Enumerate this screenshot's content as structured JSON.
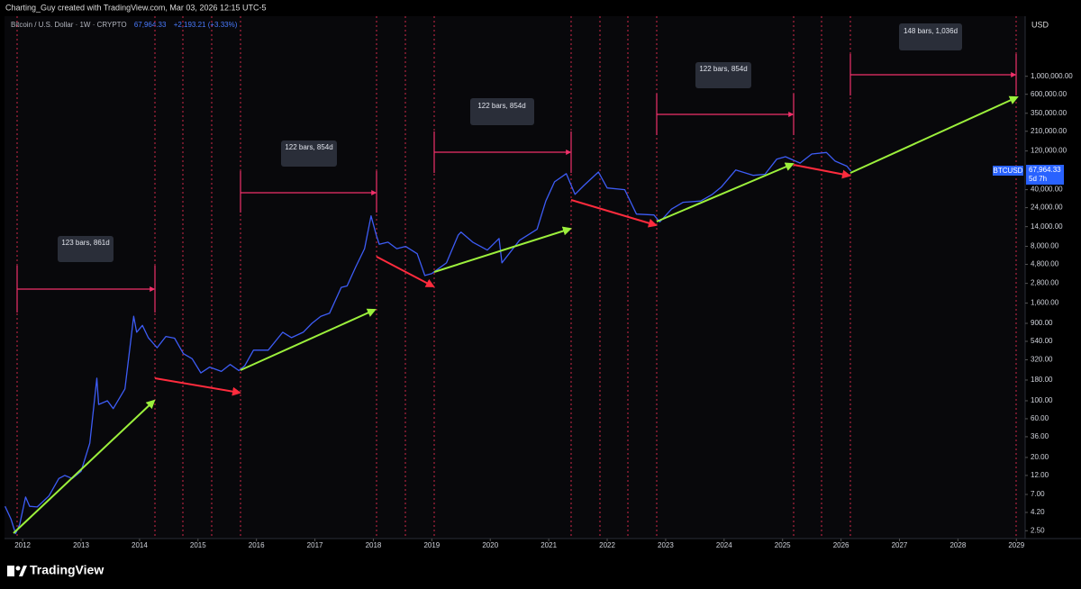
{
  "header": {
    "title": "Charting_Guy created with TradingView.com, Mar 03, 2026 12:15 UTC-5"
  },
  "footer": {
    "brand": "TradingView"
  },
  "chart_data": {
    "type": "line",
    "legend_symbol": "Bitcoin / U.S. Dollar · 1W · CRYPTO",
    "legend_price": "67,964.33",
    "legend_change": "+2,193.21 (+3.33%)",
    "currency": "USD",
    "countdown": "5d 7h",
    "log_scale": true,
    "x": [
      2011.7,
      2011.8,
      2011.88,
      2011.95,
      2012.05,
      2012.12,
      2012.25,
      2012.45,
      2012.62,
      2012.72,
      2012.85,
      2013.0,
      2013.15,
      2013.27,
      2013.3,
      2013.45,
      2013.55,
      2013.75,
      2013.9,
      2013.95,
      2014.05,
      2014.15,
      2014.3,
      2014.45,
      2014.6,
      2014.75,
      2014.9,
      2015.05,
      2015.2,
      2015.4,
      2015.55,
      2015.7,
      2015.8,
      2015.95,
      2016.2,
      2016.45,
      2016.6,
      2016.8,
      2016.95,
      2017.1,
      2017.25,
      2017.45,
      2017.55,
      2017.7,
      2017.85,
      2017.96,
      2018.05,
      2018.1,
      2018.25,
      2018.4,
      2018.55,
      2018.75,
      2018.88,
      2019.0,
      2019.25,
      2019.45,
      2019.5,
      2019.7,
      2019.95,
      2020.15,
      2020.2,
      2020.5,
      2020.8,
      2020.95,
      2021.1,
      2021.3,
      2021.45,
      2021.6,
      2021.85,
      2022.0,
      2022.3,
      2022.5,
      2022.8,
      2022.9,
      2023.1,
      2023.3,
      2023.6,
      2023.8,
      2023.95,
      2024.2,
      2024.5,
      2024.7,
      2024.9,
      2025.05,
      2025.3,
      2025.5,
      2025.75,
      2025.9,
      2026.1,
      2026.17
    ],
    "series": [
      {
        "name": "BTCUSD",
        "color": "#3d5cf5",
        "values": [
          5.0,
          3.5,
          2.3,
          3.0,
          6.5,
          5.0,
          4.9,
          6.7,
          11,
          12,
          11,
          13.5,
          30,
          190,
          90,
          100,
          80,
          140,
          1100,
          700,
          850,
          600,
          450,
          620,
          590,
          380,
          330,
          220,
          260,
          230,
          280,
          235,
          270,
          420,
          420,
          700,
          600,
          700,
          900,
          1100,
          1200,
          2500,
          2600,
          4500,
          7500,
          19000,
          11000,
          8500,
          9000,
          7500,
          8000,
          6500,
          3500,
          3700,
          5000,
          11000,
          12000,
          9000,
          7200,
          10000,
          5000,
          9500,
          13000,
          29000,
          50000,
          63000,
          35000,
          45000,
          66000,
          42000,
          40000,
          20000,
          19500,
          16000,
          23000,
          28000,
          29000,
          35000,
          43000,
          70000,
          60000,
          62000,
          95000,
          102000,
          85000,
          110000,
          115000,
          90000,
          78000,
          67964.33
        ]
      }
    ],
    "xlim": [
      2011.69,
      2029.15
    ],
    "xticks": [
      2012,
      2013,
      2014,
      2015,
      2016,
      2017,
      2018,
      2019,
      2020,
      2021,
      2022,
      2023,
      2024,
      2025,
      2026,
      2027,
      2028,
      2029
    ],
    "ylim": [
      2,
      5500000
    ],
    "yticks": [
      {
        "value": 2.5,
        "label": "2.50"
      },
      {
        "value": 4.2,
        "label": "4.20"
      },
      {
        "value": 7,
        "label": "7.00"
      },
      {
        "value": 12,
        "label": "12.00"
      },
      {
        "value": 20,
        "label": "20.00"
      },
      {
        "value": 36,
        "label": "36.00"
      },
      {
        "value": 60,
        "label": "60.00"
      },
      {
        "value": 100,
        "label": "100.00"
      },
      {
        "value": 180,
        "label": "180.00"
      },
      {
        "value": 320,
        "label": "320.00"
      },
      {
        "value": 540,
        "label": "540.00"
      },
      {
        "value": 900,
        "label": "900.00"
      },
      {
        "value": 1600,
        "label": "1,600.00"
      },
      {
        "value": 2800,
        "label": "2,800.00"
      },
      {
        "value": 4800,
        "label": "4,800.00"
      },
      {
        "value": 8000,
        "label": "8,000.00"
      },
      {
        "value": 14000,
        "label": "14,000.00"
      },
      {
        "value": 24000,
        "label": "24,000.00"
      },
      {
        "value": 40000,
        "label": "40,000.00"
      },
      {
        "value": 120000,
        "label": "120,000.00"
      },
      {
        "value": 210000,
        "label": "210,000.00"
      },
      {
        "value": 350000,
        "label": "350,000.00"
      },
      {
        "value": 600000,
        "label": "600,000.00"
      },
      {
        "value": 1000000,
        "label": "1,000,000.00"
      }
    ],
    "annotations": [
      "123 bars, 861d",
      "122 bars, 854d",
      "122 bars, 854d",
      "122 bars, 854d",
      "148 bars, 1,036d"
    ]
  }
}
